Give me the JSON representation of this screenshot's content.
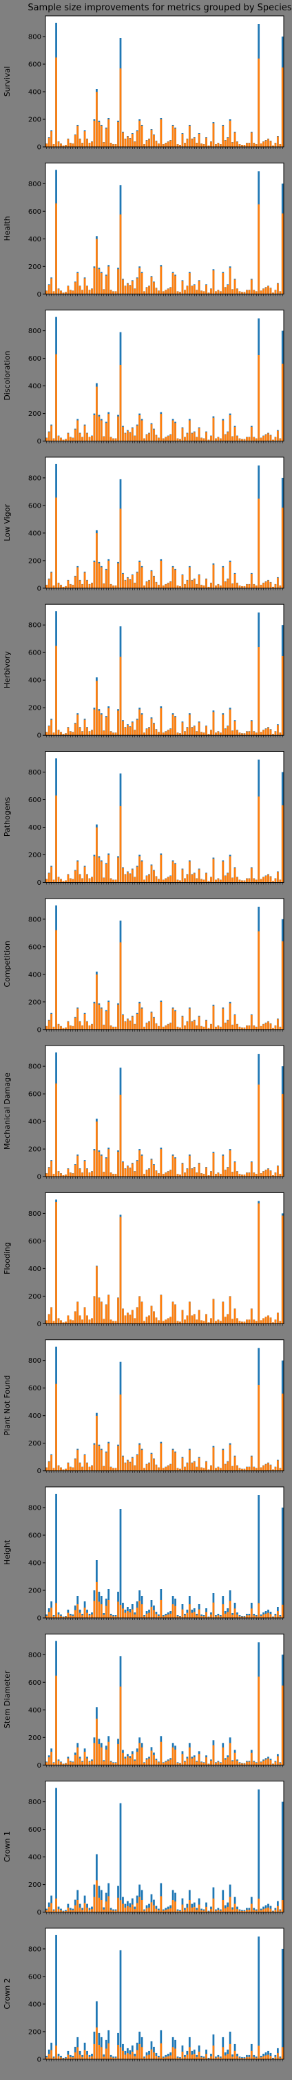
{
  "chart_data": {
    "type": "bar",
    "title": "Sample size improvements for metrics grouped by Species",
    "ylim": [
      0,
      950
    ],
    "yticks": [
      0,
      200,
      400,
      600,
      800
    ],
    "grid": false,
    "legend": "none",
    "colors": {
      "before": "#1f77b4",
      "after": "#ff7f0e",
      "background": "#808080",
      "panel": "#ffffff"
    },
    "category_count": 100,
    "base_values": [
      25,
      70,
      120,
      20,
      900,
      40,
      25,
      10,
      15,
      60,
      30,
      25,
      90,
      160,
      60,
      30,
      120,
      60,
      30,
      40,
      200,
      420,
      190,
      160,
      35,
      140,
      210,
      30,
      20,
      20,
      190,
      790,
      110,
      60,
      80,
      65,
      100,
      40,
      120,
      200,
      160,
      20,
      50,
      60,
      130,
      90,
      45,
      25,
      210,
      20,
      30,
      40,
      50,
      160,
      140,
      20,
      15,
      100,
      30,
      60,
      160,
      60,
      70,
      30,
      100,
      25,
      20,
      70,
      10,
      40,
      180,
      20,
      30,
      20,
      160,
      50,
      70,
      200,
      35,
      110,
      40,
      20,
      15,
      15,
      30,
      30,
      110,
      30,
      20,
      890,
      25,
      40,
      50,
      60,
      45,
      10,
      30,
      80,
      20,
      800
    ],
    "panels": [
      {
        "ylabel": "Survival",
        "orange_scale": 0.95,
        "peak_scale": 0.72
      },
      {
        "ylabel": "Health",
        "orange_scale": 0.95,
        "peak_scale": 0.73
      },
      {
        "ylabel": "Discoloration",
        "orange_scale": 0.94,
        "peak_scale": 0.7
      },
      {
        "ylabel": "Low Vigor",
        "orange_scale": 0.95,
        "peak_scale": 0.73
      },
      {
        "ylabel": "Herbivory",
        "orange_scale": 0.94,
        "peak_scale": 0.72
      },
      {
        "ylabel": "Pathogens",
        "orange_scale": 0.95,
        "peak_scale": 0.7
      },
      {
        "ylabel": "Competition",
        "orange_scale": 0.95,
        "peak_scale": 0.8
      },
      {
        "ylabel": "Mechanical Damage",
        "orange_scale": 0.95,
        "peak_scale": 0.75
      },
      {
        "ylabel": "Flooding",
        "orange_scale": 0.99,
        "peak_scale": 0.98
      },
      {
        "ylabel": "Plant Not Found",
        "orange_scale": 0.95,
        "peak_scale": 0.7
      },
      {
        "ylabel": "Height",
        "orange_scale": 0.62,
        "peak_scale": 0.12
      },
      {
        "ylabel": "Stem Diameter",
        "orange_scale": 0.8,
        "peak_scale": 0.72
      },
      {
        "ylabel": "Crown 1",
        "orange_scale": 0.55,
        "peak_scale": 0.11
      },
      {
        "ylabel": "Crown 2",
        "orange_scale": 0.55,
        "peak_scale": 0.11
      }
    ]
  }
}
